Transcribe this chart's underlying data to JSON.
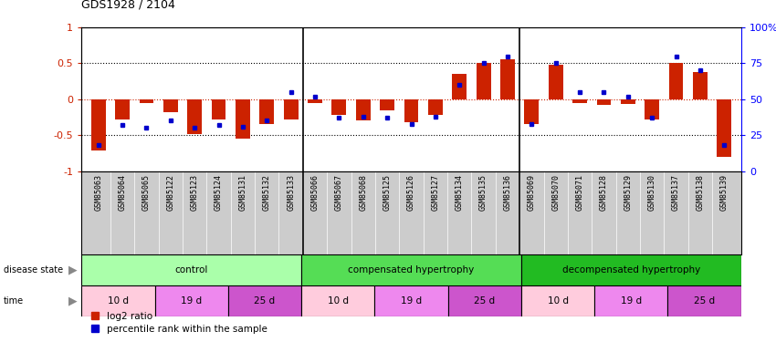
{
  "title": "GDS1928 / 2104",
  "samples": [
    "GSM85063",
    "GSM85064",
    "GSM85065",
    "GSM85122",
    "GSM85123",
    "GSM85124",
    "GSM85131",
    "GSM85132",
    "GSM85133",
    "GSM85066",
    "GSM85067",
    "GSM85068",
    "GSM85125",
    "GSM85126",
    "GSM85127",
    "GSM85134",
    "GSM85135",
    "GSM85136",
    "GSM85069",
    "GSM85070",
    "GSM85071",
    "GSM85128",
    "GSM85129",
    "GSM85130",
    "GSM85137",
    "GSM85138",
    "GSM85139"
  ],
  "log2_ratio": [
    -0.72,
    -0.28,
    -0.05,
    -0.18,
    -0.48,
    -0.28,
    -0.55,
    -0.35,
    -0.28,
    -0.06,
    -0.22,
    -0.3,
    -0.15,
    -0.32,
    -0.22,
    0.35,
    0.5,
    0.55,
    -0.35,
    0.48,
    -0.05,
    -0.08,
    -0.07,
    -0.28,
    0.5,
    0.38,
    -0.8
  ],
  "percentile": [
    18,
    32,
    30,
    35,
    30,
    32,
    31,
    35,
    55,
    52,
    37,
    38,
    37,
    33,
    38,
    60,
    75,
    80,
    33,
    75,
    55,
    55,
    52,
    37,
    80,
    70,
    18
  ],
  "disease_groups": [
    {
      "label": "control",
      "start": 0,
      "end": 9,
      "color": "#AAFFAA"
    },
    {
      "label": "compensated hypertrophy",
      "start": 9,
      "end": 18,
      "color": "#55DD55"
    },
    {
      "label": "decompensated hypertrophy",
      "start": 18,
      "end": 27,
      "color": "#22BB22"
    }
  ],
  "time_groups": [
    {
      "label": "10 d",
      "start": 0,
      "end": 3,
      "color": "#FFCCDD"
    },
    {
      "label": "19 d",
      "start": 3,
      "end": 6,
      "color": "#EE88EE"
    },
    {
      "label": "25 d",
      "start": 6,
      "end": 9,
      "color": "#CC55CC"
    },
    {
      "label": "10 d",
      "start": 9,
      "end": 12,
      "color": "#FFCCDD"
    },
    {
      "label": "19 d",
      "start": 12,
      "end": 15,
      "color": "#EE88EE"
    },
    {
      "label": "25 d",
      "start": 15,
      "end": 18,
      "color": "#CC55CC"
    },
    {
      "label": "10 d",
      "start": 18,
      "end": 21,
      "color": "#FFCCDD"
    },
    {
      "label": "19 d",
      "start": 21,
      "end": 24,
      "color": "#EE88EE"
    },
    {
      "label": "25 d",
      "start": 24,
      "end": 27,
      "color": "#CC55CC"
    }
  ],
  "bar_color": "#CC2200",
  "dot_color": "#0000CC",
  "left_ylim": [
    -1,
    1
  ],
  "left_yticks": [
    -1,
    -0.5,
    0,
    0.5,
    1
  ],
  "right_ylim": [
    0,
    100
  ],
  "right_yticks": [
    0,
    25,
    50,
    75,
    100
  ],
  "right_yticklabels": [
    "0",
    "25",
    "50",
    "75",
    "100%"
  ],
  "label_bg": "#CCCCCC",
  "label_sep_color": "#888888",
  "group_sep_color": "#000000"
}
